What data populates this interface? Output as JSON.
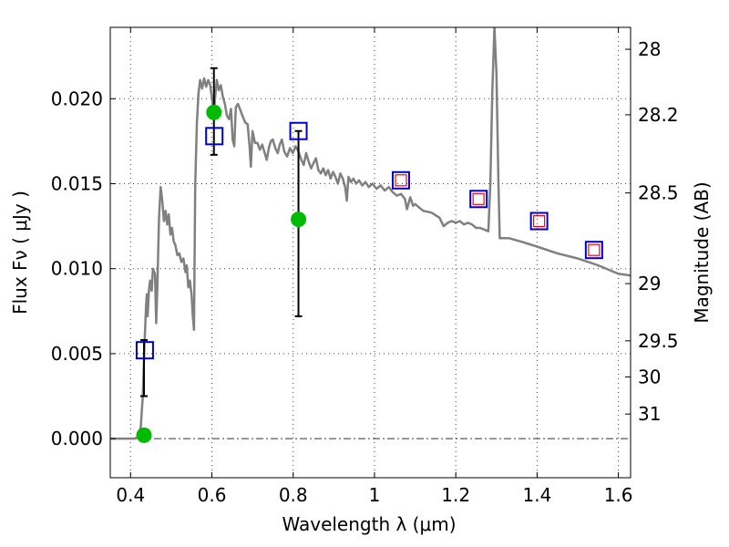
{
  "chart_data": {
    "type": "line",
    "xlabel": "Wavelength  λ (μm)",
    "ylabel_left": "Flux  Fν  ( μJy )",
    "ylabel_right": "Magnitude (AB)",
    "xlim": [
      0.35,
      1.63
    ],
    "ylim": [
      -0.0023,
      0.0242
    ],
    "grid": true,
    "x_ticks": [
      {
        "value": 0.4,
        "label": "0.4"
      },
      {
        "value": 0.6,
        "label": "0.6"
      },
      {
        "value": 0.8,
        "label": "0.8"
      },
      {
        "value": 1.0,
        "label": "1"
      },
      {
        "value": 1.2,
        "label": "1.2"
      },
      {
        "value": 1.4,
        "label": "1.4"
      },
      {
        "value": 1.6,
        "label": "1.6"
      }
    ],
    "y_ticks": [
      {
        "value": 0.0,
        "label": "0.000"
      },
      {
        "value": 0.005,
        "label": "0.005"
      },
      {
        "value": 0.01,
        "label": "0.010"
      },
      {
        "value": 0.015,
        "label": "0.015"
      },
      {
        "value": 0.02,
        "label": "0.020"
      }
    ],
    "mag_ticks": [
      {
        "value": 28,
        "label": "28"
      },
      {
        "value": 28.2,
        "label": "28.2"
      },
      {
        "value": 28.5,
        "label": "28.5"
      },
      {
        "value": 29,
        "label": "29"
      },
      {
        "value": 29.5,
        "label": "29.5"
      },
      {
        "value": 30,
        "label": "30"
      },
      {
        "value": 31,
        "label": "31"
      }
    ],
    "sed_model": {
      "color": "#808080",
      "points": [
        [
          0.35,
          0.0
        ],
        [
          0.41,
          0.0
        ],
        [
          0.418,
          0.0001
        ],
        [
          0.425,
          0.0007
        ],
        [
          0.43,
          0.0025
        ],
        [
          0.434,
          0.0055
        ],
        [
          0.438,
          0.0078
        ],
        [
          0.44,
          0.0085
        ],
        [
          0.442,
          0.0072
        ],
        [
          0.445,
          0.0087
        ],
        [
          0.448,
          0.0093
        ],
        [
          0.452,
          0.0087
        ],
        [
          0.455,
          0.01
        ],
        [
          0.46,
          0.0097
        ],
        [
          0.463,
          0.0068
        ],
        [
          0.466,
          0.009
        ],
        [
          0.47,
          0.013
        ],
        [
          0.474,
          0.0148
        ],
        [
          0.478,
          0.014
        ],
        [
          0.482,
          0.0128
        ],
        [
          0.486,
          0.0134
        ],
        [
          0.49,
          0.0126
        ],
        [
          0.494,
          0.0132
        ],
        [
          0.498,
          0.012
        ],
        [
          0.502,
          0.0124
        ],
        [
          0.506,
          0.0116
        ],
        [
          0.51,
          0.0114
        ],
        [
          0.515,
          0.0108
        ],
        [
          0.52,
          0.0109
        ],
        [
          0.525,
          0.0104
        ],
        [
          0.53,
          0.0106
        ],
        [
          0.535,
          0.0098
        ],
        [
          0.538,
          0.0102
        ],
        [
          0.542,
          0.0089
        ],
        [
          0.546,
          0.0093
        ],
        [
          0.55,
          0.0085
        ],
        [
          0.553,
          0.0072
        ],
        [
          0.556,
          0.0064
        ],
        [
          0.559,
          0.0148
        ],
        [
          0.563,
          0.0185
        ],
        [
          0.567,
          0.0203
        ],
        [
          0.571,
          0.0211
        ],
        [
          0.576,
          0.0206
        ],
        [
          0.581,
          0.0212
        ],
        [
          0.586,
          0.0207
        ],
        [
          0.591,
          0.0211
        ],
        [
          0.596,
          0.0208
        ],
        [
          0.601,
          0.0199
        ],
        [
          0.604,
          0.0188
        ],
        [
          0.608,
          0.0201
        ],
        [
          0.612,
          0.0211
        ],
        [
          0.617,
          0.0205
        ],
        [
          0.622,
          0.0208
        ],
        [
          0.627,
          0.0201
        ],
        [
          0.632,
          0.0197
        ],
        [
          0.637,
          0.019
        ],
        [
          0.642,
          0.0188
        ],
        [
          0.647,
          0.0194
        ],
        [
          0.651,
          0.0176
        ],
        [
          0.655,
          0.0172
        ],
        [
          0.659,
          0.0195
        ],
        [
          0.664,
          0.0197
        ],
        [
          0.669,
          0.0194
        ],
        [
          0.675,
          0.019
        ],
        [
          0.682,
          0.0186
        ],
        [
          0.688,
          0.0185
        ],
        [
          0.693,
          0.0171
        ],
        [
          0.696,
          0.016
        ],
        [
          0.7,
          0.0181
        ],
        [
          0.706,
          0.0174
        ],
        [
          0.712,
          0.0174
        ],
        [
          0.718,
          0.017
        ],
        [
          0.724,
          0.0173
        ],
        [
          0.73,
          0.0168
        ],
        [
          0.735,
          0.0164
        ],
        [
          0.74,
          0.0171
        ],
        [
          0.745,
          0.0175
        ],
        [
          0.75,
          0.0176
        ],
        [
          0.756,
          0.0171
        ],
        [
          0.762,
          0.0168
        ],
        [
          0.767,
          0.0173
        ],
        [
          0.772,
          0.0176
        ],
        [
          0.778,
          0.0169
        ],
        [
          0.785,
          0.0166
        ],
        [
          0.792,
          0.0171
        ],
        [
          0.799,
          0.0168
        ],
        [
          0.806,
          0.0172
        ],
        [
          0.813,
          0.0169
        ],
        [
          0.82,
          0.0164
        ],
        [
          0.826,
          0.0161
        ],
        [
          0.832,
          0.0168
        ],
        [
          0.838,
          0.0163
        ],
        [
          0.844,
          0.0159
        ],
        [
          0.85,
          0.0162
        ],
        [
          0.856,
          0.0165
        ],
        [
          0.862,
          0.0158
        ],
        [
          0.868,
          0.0156
        ],
        [
          0.874,
          0.0159
        ],
        [
          0.88,
          0.0155
        ],
        [
          0.886,
          0.0158
        ],
        [
          0.892,
          0.0153
        ],
        [
          0.898,
          0.0157
        ],
        [
          0.904,
          0.0154
        ],
        [
          0.91,
          0.015
        ],
        [
          0.916,
          0.0156
        ],
        [
          0.922,
          0.0153
        ],
        [
          0.928,
          0.0148
        ],
        [
          0.932,
          0.014
        ],
        [
          0.936,
          0.0154
        ],
        [
          0.942,
          0.0151
        ],
        [
          0.948,
          0.0153
        ],
        [
          0.955,
          0.015
        ],
        [
          0.962,
          0.0152
        ],
        [
          0.97,
          0.0149
        ],
        [
          0.978,
          0.0151
        ],
        [
          0.986,
          0.0148
        ],
        [
          0.995,
          0.015
        ],
        [
          1.005,
          0.0147
        ],
        [
          1.015,
          0.0149
        ],
        [
          1.025,
          0.0146
        ],
        [
          1.035,
          0.0148
        ],
        [
          1.045,
          0.0145
        ],
        [
          1.055,
          0.0143
        ],
        [
          1.065,
          0.0144
        ],
        [
          1.075,
          0.0141
        ],
        [
          1.08,
          0.0135
        ],
        [
          1.088,
          0.0142
        ],
        [
          1.095,
          0.0137
        ],
        [
          1.1,
          0.0138
        ],
        [
          1.12,
          0.0134
        ],
        [
          1.14,
          0.0133
        ],
        [
          1.16,
          0.013
        ],
        [
          1.17,
          0.0125
        ],
        [
          1.18,
          0.0127
        ],
        [
          1.19,
          0.0128
        ],
        [
          1.2,
          0.0127
        ],
        [
          1.21,
          0.0128
        ],
        [
          1.22,
          0.0126
        ],
        [
          1.23,
          0.0127
        ],
        [
          1.24,
          0.0126
        ],
        [
          1.25,
          0.0124
        ],
        [
          1.26,
          0.0124
        ],
        [
          1.27,
          0.0123
        ],
        [
          1.28,
          0.0122
        ],
        [
          1.285,
          0.015
        ],
        [
          1.29,
          0.0205
        ],
        [
          1.295,
          0.0242
        ],
        [
          1.3,
          0.0215
        ],
        [
          1.305,
          0.015
        ],
        [
          1.308,
          0.0118
        ],
        [
          1.33,
          0.0118
        ],
        [
          1.36,
          0.0116
        ],
        [
          1.4,
          0.0113
        ],
        [
          1.45,
          0.0109
        ],
        [
          1.5,
          0.0106
        ],
        [
          1.55,
          0.0102
        ],
        [
          1.58,
          0.0099
        ],
        [
          1.6,
          0.0097
        ],
        [
          1.63,
          0.0096
        ]
      ]
    },
    "observed_points": {
      "color": "#00bb00",
      "points": [
        {
          "x": 0.433,
          "y": 0.0002,
          "yerr_low": 0.0025,
          "yerr_high": 0.0058
        },
        {
          "x": 0.605,
          "y": 0.0192,
          "yerr_low": 0.0167,
          "yerr_high": 0.0218
        },
        {
          "x": 0.813,
          "y": 0.0129,
          "yerr_low": 0.0072,
          "yerr_high": 0.0181
        }
      ]
    },
    "model_boxes": {
      "color": "#0000cc",
      "points": [
        {
          "x": 0.435,
          "y": 0.0052
        },
        {
          "x": 0.606,
          "y": 0.0178
        },
        {
          "x": 0.813,
          "y": 0.0181
        },
        {
          "x": 1.065,
          "y": 0.0152
        },
        {
          "x": 1.256,
          "y": 0.0141
        },
        {
          "x": 1.405,
          "y": 0.0128
        },
        {
          "x": 1.54,
          "y": 0.0111
        }
      ]
    },
    "nir_boxes": {
      "color": "#ff0000",
      "points": [
        {
          "x": 1.065,
          "y": 0.0152
        },
        {
          "x": 1.256,
          "y": 0.0141
        },
        {
          "x": 1.405,
          "y": 0.0128
        },
        {
          "x": 1.54,
          "y": 0.0111
        }
      ]
    }
  }
}
